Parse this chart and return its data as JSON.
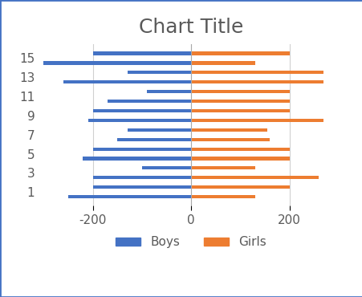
{
  "title": "Chart Title",
  "categories": [
    1,
    3,
    5,
    7,
    9,
    11,
    13,
    15
  ],
  "boys_top": [
    -200,
    -100,
    -200,
    -130,
    -200,
    -90,
    -130,
    -200
  ],
  "boys_bottom": [
    -250,
    -200,
    -220,
    -150,
    -210,
    -170,
    -260,
    -300
  ],
  "girls_top": [
    200,
    130,
    200,
    155,
    200,
    200,
    270,
    200
  ],
  "girls_bottom": [
    130,
    260,
    200,
    160,
    270,
    200,
    270,
    130
  ],
  "boys_color": "#4472c4",
  "girls_color": "#ed7d31",
  "xlim": [
    -310,
    310
  ],
  "xticks": [
    -200,
    0,
    200
  ],
  "legend_labels": [
    "Boys",
    "Girls"
  ],
  "title_fontsize": 18,
  "tick_fontsize": 11,
  "background_color": "#ffffff",
  "border_color": "#4472c4",
  "bar_height": 0.35
}
